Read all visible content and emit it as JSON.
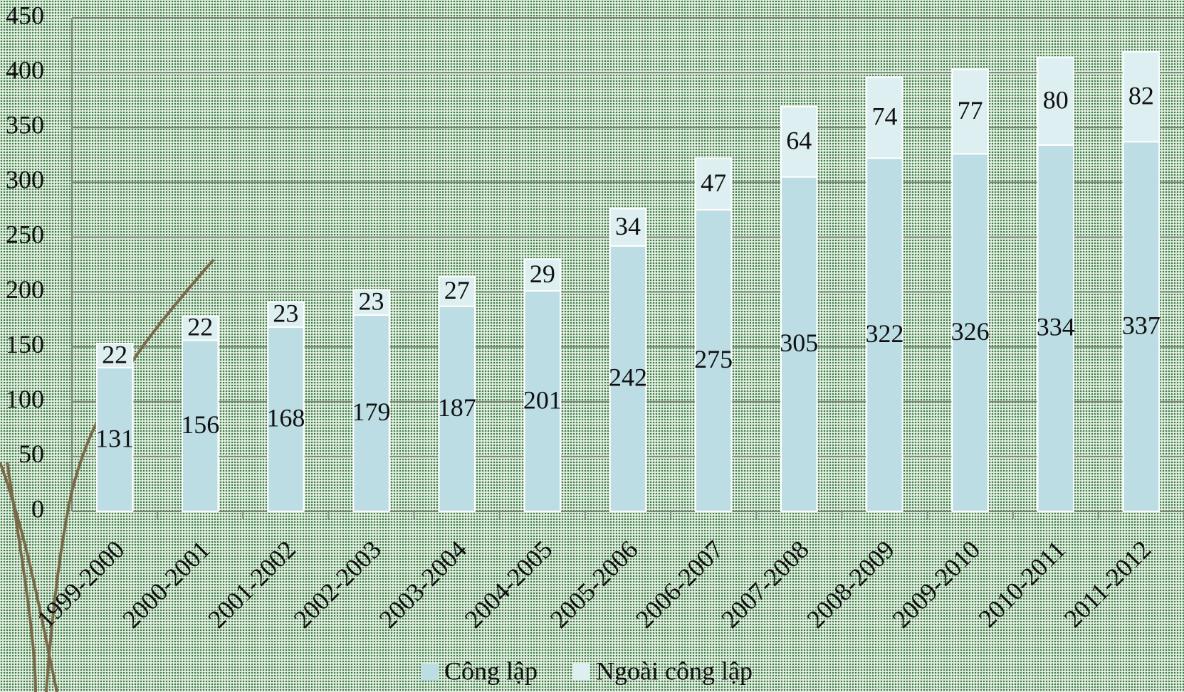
{
  "chart_data": {
    "type": "stacked_bar",
    "categories": [
      "1999-2000",
      "2000-2001",
      "2001-2002",
      "2002-2003",
      "2003-2004",
      "2004-2005",
      "2005-2006",
      "2006-2007",
      "2007-2008",
      "2008-2009",
      "2009-2010",
      "2010-2011",
      "2011-2012"
    ],
    "series": [
      {
        "name": "Công lập",
        "color": "#bcdde3",
        "values": [
          131,
          156,
          168,
          179,
          187,
          201,
          242,
          275,
          305,
          322,
          326,
          334,
          337
        ]
      },
      {
        "name": "Ngoài công lập",
        "color": "#ddeff1",
        "values": [
          22,
          22,
          23,
          23,
          27,
          29,
          34,
          47,
          64,
          74,
          77,
          80,
          82
        ]
      }
    ],
    "ylim": [
      0,
      450
    ],
    "yticks": [
      0,
      50,
      100,
      150,
      200,
      250,
      300,
      350,
      400,
      450
    ],
    "grid": true,
    "legend": "bottom"
  }
}
